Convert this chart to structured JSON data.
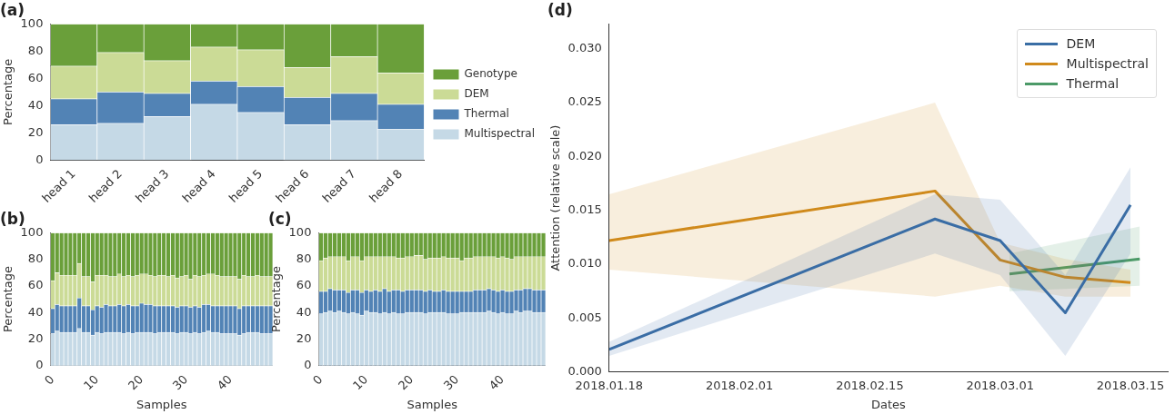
{
  "chart_data": [
    {
      "type": "bar",
      "title": "(a)",
      "ylabel": "Percentage",
      "stacked": true,
      "legend": "right",
      "categories": [
        "head 1",
        "head 2",
        "head 3",
        "head 4",
        "head 5",
        "head 6",
        "head 7",
        "head 8"
      ],
      "ylim": [
        0,
        100
      ],
      "yticks": [
        0,
        20,
        40,
        60,
        80,
        100
      ],
      "series": [
        {
          "name": "Multispectral",
          "color": "#c5d9e6",
          "values": [
            26,
            27,
            32,
            41,
            35,
            26,
            29,
            22.5
          ]
        },
        {
          "name": "Thermal",
          "color": "#5283b5",
          "values": [
            19,
            23,
            17,
            17,
            19,
            20,
            20,
            18.5
          ]
        },
        {
          "name": "DEM",
          "color": "#cbdb96",
          "values": [
            24,
            29,
            24,
            25,
            27,
            22,
            27,
            23
          ]
        },
        {
          "name": "Genotype",
          "color": "#6a9f3a",
          "values": [
            31,
            21,
            27,
            17,
            19,
            32,
            24,
            36
          ]
        }
      ]
    },
    {
      "type": "bar",
      "title": "(b)",
      "ylabel": "Percentage",
      "xlabel": "Samples",
      "stacked": true,
      "x": [
        0,
        1,
        2,
        3,
        4,
        5,
        6,
        7,
        8,
        9,
        10,
        11,
        12,
        13,
        14,
        15,
        16,
        17,
        18,
        19,
        20,
        21,
        22,
        23,
        24,
        25,
        26,
        27,
        28,
        29,
        30,
        31,
        32,
        33,
        34,
        35,
        36,
        37,
        38,
        39,
        40,
        41,
        42,
        43,
        44,
        45,
        46,
        47,
        48,
        49
      ],
      "xlim": [
        -0.5,
        49.5
      ],
      "xticks": [
        0,
        10,
        20,
        30,
        40
      ],
      "ylim": [
        0,
        100
      ],
      "yticks": [
        0,
        20,
        40,
        60,
        80,
        100
      ],
      "series": [
        {
          "color": "#c5d9e6",
          "values": [
            24,
            26,
            25,
            25,
            25,
            25,
            28,
            25,
            25,
            23,
            25,
            24,
            25,
            25,
            25,
            25,
            24,
            25,
            24,
            25,
            25,
            25,
            25,
            24,
            25,
            25,
            25,
            25,
            24,
            25,
            25,
            24,
            25,
            24,
            25,
            26,
            25,
            25,
            24,
            24,
            24,
            24,
            23,
            24,
            25,
            25,
            25,
            24,
            24,
            24
          ]
        },
        {
          "color": "#5283b5",
          "values": [
            19,
            20,
            20,
            20,
            20,
            20,
            23,
            20,
            20,
            19,
            20,
            20,
            21,
            20,
            20,
            21,
            21,
            21,
            21,
            20,
            22,
            21,
            21,
            21,
            20,
            20,
            20,
            20,
            20,
            20,
            20,
            20,
            20,
            20,
            21,
            20,
            20,
            20,
            21,
            21,
            21,
            21,
            20,
            21,
            20,
            20,
            20,
            21,
            21,
            21
          ]
        },
        {
          "color": "#cbdb96",
          "values": [
            21,
            24,
            23,
            23,
            23,
            23,
            26,
            22,
            22,
            21,
            23,
            24,
            22,
            22,
            22,
            23,
            22,
            22,
            22,
            23,
            22,
            23,
            22,
            22,
            23,
            23,
            22,
            23,
            22,
            22,
            23,
            21,
            23,
            23,
            22,
            23,
            24,
            23,
            22,
            22,
            22,
            22,
            22,
            23,
            22,
            22,
            23,
            22,
            22,
            22
          ]
        },
        {
          "color": "#6a9f3a",
          "values": [
            36,
            30,
            32,
            32,
            32,
            32,
            23,
            33,
            33,
            37,
            32,
            32,
            32,
            33,
            33,
            31,
            33,
            32,
            33,
            32,
            31,
            31,
            32,
            33,
            32,
            32,
            33,
            32,
            34,
            33,
            32,
            35,
            32,
            33,
            32,
            31,
            31,
            32,
            33,
            33,
            33,
            33,
            35,
            32,
            33,
            33,
            32,
            33,
            33,
            33
          ]
        }
      ]
    },
    {
      "type": "bar",
      "title": "(c)",
      "ylabel": "Percentage",
      "xlabel": "Samples",
      "stacked": true,
      "x": [
        0,
        1,
        2,
        3,
        4,
        5,
        6,
        7,
        8,
        9,
        10,
        11,
        12,
        13,
        14,
        15,
        16,
        17,
        18,
        19,
        20,
        21,
        22,
        23,
        24,
        25,
        26,
        27,
        28,
        29,
        30,
        31,
        32,
        33,
        34,
        35,
        36,
        37,
        38,
        39,
        40,
        41,
        42,
        43,
        44,
        45,
        46,
        47,
        48,
        49
      ],
      "xlim": [
        -0.5,
        49.5
      ],
      "xticks": [
        0,
        10,
        20,
        30,
        40
      ],
      "ylim": [
        0,
        100
      ],
      "yticks": [
        0,
        20,
        40,
        60,
        80,
        100
      ],
      "series": [
        {
          "color": "#c5d9e6",
          "values": [
            39,
            40,
            41,
            40,
            41,
            40,
            39,
            40,
            39,
            38,
            41,
            40,
            40,
            39,
            40,
            39,
            40,
            39,
            39,
            40,
            40,
            40,
            40,
            39,
            40,
            40,
            40,
            40,
            39,
            39,
            39,
            40,
            40,
            40,
            40,
            40,
            40,
            41,
            40,
            39,
            40,
            39,
            39,
            41,
            40,
            41,
            41,
            40,
            40,
            40
          ]
        },
        {
          "color": "#5283b5",
          "values": [
            17,
            16,
            17,
            17,
            16,
            17,
            16,
            17,
            18,
            17,
            16,
            16,
            17,
            17,
            18,
            17,
            17,
            18,
            17,
            17,
            17,
            17,
            17,
            17,
            17,
            16,
            16,
            17,
            17,
            17,
            17,
            16,
            16,
            16,
            17,
            17,
            17,
            17,
            17,
            17,
            17,
            17,
            17,
            16,
            17,
            17,
            17,
            17,
            17,
            17
          ]
        },
        {
          "color": "#cbdb96",
          "values": [
            23,
            25,
            24,
            25,
            25,
            25,
            24,
            25,
            25,
            24,
            25,
            26,
            25,
            26,
            24,
            26,
            25,
            24,
            25,
            25,
            25,
            26,
            26,
            24,
            24,
            25,
            25,
            25,
            25,
            25,
            25,
            23,
            25,
            25,
            25,
            25,
            25,
            24,
            25,
            25,
            25,
            25,
            24,
            25,
            25,
            24,
            24,
            25,
            25,
            25
          ]
        },
        {
          "color": "#6a9f3a",
          "values": [
            21,
            19,
            18,
            18,
            18,
            18,
            21,
            18,
            18,
            21,
            18,
            18,
            18,
            18,
            18,
            18,
            18,
            19,
            19,
            18,
            18,
            17,
            17,
            20,
            19,
            19,
            19,
            18,
            19,
            19,
            19,
            21,
            19,
            19,
            18,
            18,
            18,
            18,
            18,
            19,
            18,
            19,
            20,
            18,
            18,
            18,
            18,
            18,
            18,
            18
          ]
        }
      ]
    },
    {
      "type": "line",
      "title": "(d)",
      "xlabel": "Dates",
      "ylabel": "Attention (relative scale)",
      "legend": "top right",
      "xlim": [
        "2018-01-18",
        "2018-03-19"
      ],
      "xticks": [
        {
          "value": "2018-01-18",
          "label": "2018.01.18"
        },
        {
          "value": "2018-02-01",
          "label": "2018.02.01"
        },
        {
          "value": "2018-02-15",
          "label": "2018.02.15"
        },
        {
          "value": "2018-03-01",
          "label": "2018.03.01"
        },
        {
          "value": "2018-03-15",
          "label": "2018.03.15"
        }
      ],
      "ylim": [
        0,
        0.0323
      ],
      "yticks": [
        {
          "value": 0,
          "label": "0.000"
        },
        {
          "value": 0.005,
          "label": "0.005"
        },
        {
          "value": 0.01,
          "label": "0.010"
        },
        {
          "value": 0.015,
          "label": "0.015"
        },
        {
          "value": 0.02,
          "label": "0.020"
        },
        {
          "value": 0.025,
          "label": "0.025"
        },
        {
          "value": 0.03,
          "label": "0.030"
        }
      ],
      "series": [
        {
          "name": "DEM",
          "color": "#3a6ea5",
          "x": [
            "2018-01-18",
            "2018-02-22",
            "2018-03-01",
            "2018-03-08",
            "2018-03-15"
          ],
          "values": [
            0.0021,
            0.0142,
            0.0122,
            0.0055,
            0.0155
          ],
          "lower": [
            0.0015,
            0.011,
            0.009,
            0.0015,
            0.011
          ],
          "upper": [
            0.0028,
            0.0165,
            0.016,
            0.009,
            0.019
          ]
        },
        {
          "name": "Multispectral",
          "color": "#d08a1c",
          "x": [
            "2018-01-18",
            "2018-02-22",
            "2018-03-01",
            "2018-03-08",
            "2018-03-15"
          ],
          "values": [
            0.0122,
            0.0168,
            0.0104,
            0.0088,
            0.0083
          ],
          "lower": [
            0.0095,
            0.007,
            0.008,
            0.007,
            0.007
          ],
          "upper": [
            0.0165,
            0.025,
            0.012,
            0.0105,
            0.0095
          ]
        },
        {
          "name": "Thermal",
          "color": "#4c9a68",
          "x": [
            "2018-03-02",
            "2018-03-16"
          ],
          "values": [
            0.0091,
            0.0105
          ],
          "lower": [
            0.0075,
            0.008
          ],
          "upper": [
            0.011,
            0.0135
          ]
        }
      ]
    }
  ]
}
